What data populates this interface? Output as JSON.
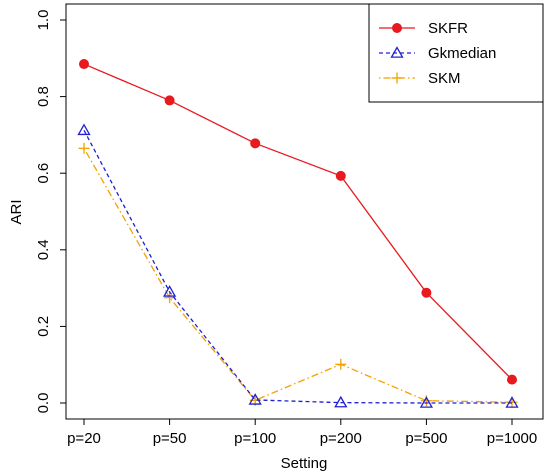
{
  "chart_data": {
    "type": "line",
    "title": "",
    "xlabel": "Setting",
    "ylabel": "ARI",
    "categories": [
      "p=20",
      "p=50",
      "p=100",
      "p=200",
      "p=500",
      "p=1000"
    ],
    "ylim": [
      0.0,
      1.0
    ],
    "yticks": [
      "0.0",
      "0.2",
      "0.4",
      "0.6",
      "0.8",
      "1.0"
    ],
    "grid": false,
    "legend_position": "top-right",
    "series": [
      {
        "name": "SKFR",
        "color": "#e8191f",
        "marker": "filled-circle",
        "line": "solid",
        "values": [
          0.885,
          0.79,
          0.678,
          0.593,
          0.288,
          0.061
        ]
      },
      {
        "name": "Gkmedian",
        "color": "#2020d0",
        "marker": "open-triangle",
        "line": "dashed",
        "values": [
          0.712,
          0.29,
          0.008,
          0.001,
          0.0,
          0.0
        ]
      },
      {
        "name": "SKM",
        "color": "#f5a000",
        "marker": "plus",
        "line": "dotdash",
        "values": [
          0.665,
          0.275,
          0.007,
          0.101,
          0.006,
          0.002
        ]
      }
    ]
  }
}
